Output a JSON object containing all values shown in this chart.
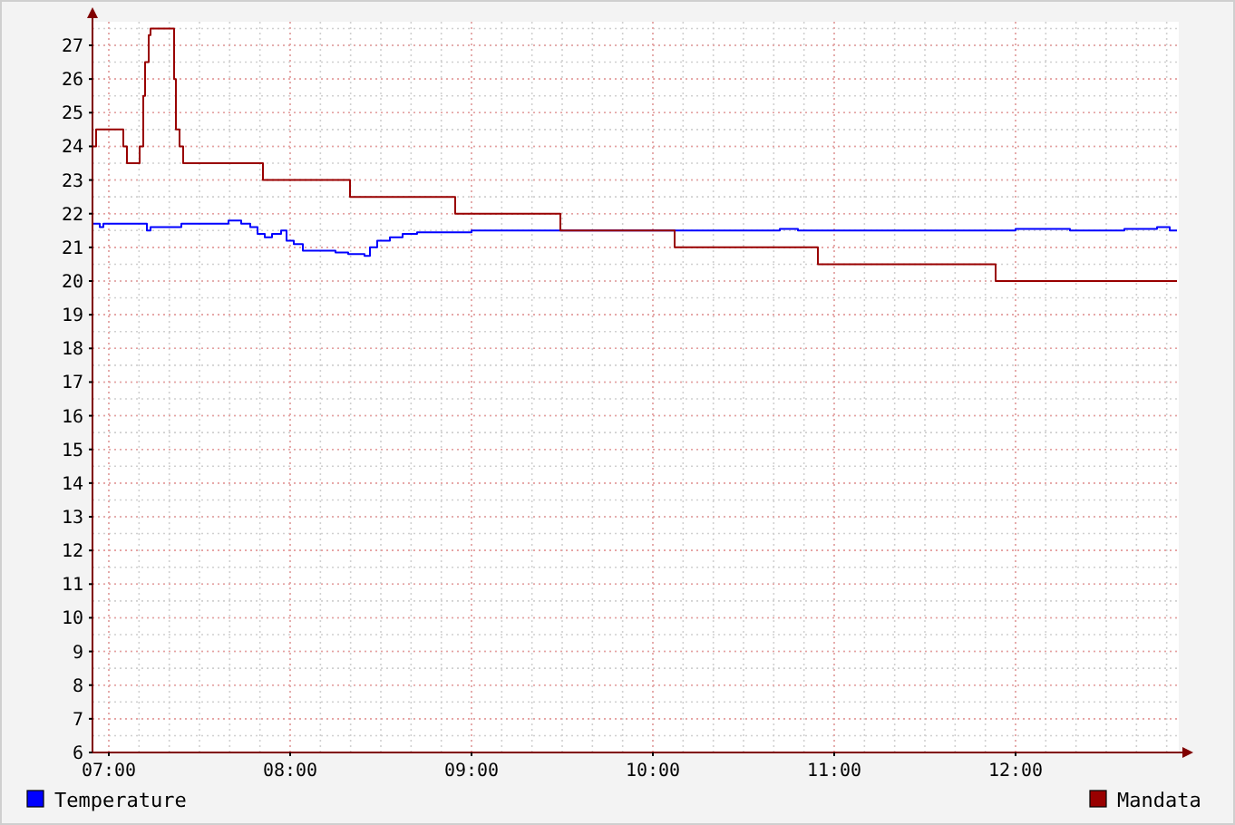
{
  "chart_data": {
    "type": "step",
    "grid": true,
    "legend": "bottom",
    "line_style": "solid",
    "marker": "none",
    "xlim": [
      6.91,
      12.9
    ],
    "xticks": [
      {
        "value": 7,
        "label": "07:00"
      },
      {
        "value": 8,
        "label": "08:00"
      },
      {
        "value": 9,
        "label": "09:00"
      },
      {
        "value": 10,
        "label": "10:00"
      },
      {
        "value": 11,
        "label": "11:00"
      },
      {
        "value": 12,
        "label": "12:00"
      }
    ],
    "ylim": [
      6,
      27.7
    ],
    "yticks": [
      6,
      7,
      8,
      9,
      10,
      11,
      12,
      13,
      14,
      15,
      16,
      17,
      18,
      19,
      20,
      21,
      22,
      23,
      24,
      25,
      26,
      27
    ],
    "series": [
      {
        "name": "Temperature",
        "color": "#0000ff",
        "x": [
          6.91,
          6.95,
          6.97,
          7.1,
          7.2,
          7.21,
          7.23,
          7.4,
          7.5,
          7.6,
          7.66,
          7.7,
          7.73,
          7.78,
          7.82,
          7.86,
          7.9,
          7.95,
          7.98,
          8.02,
          8.07,
          8.2,
          8.25,
          8.32,
          8.41,
          8.44,
          8.48,
          8.55,
          8.62,
          8.7,
          8.9,
          9.0,
          9.5,
          10.5,
          10.7,
          10.8,
          11.5,
          11.9,
          12.0,
          12.3,
          12.6,
          12.78,
          12.85,
          12.89
        ],
        "values": [
          21.7,
          21.6,
          21.7,
          21.7,
          21.7,
          21.5,
          21.6,
          21.7,
          21.7,
          21.7,
          21.8,
          21.8,
          21.7,
          21.6,
          21.4,
          21.3,
          21.4,
          21.5,
          21.2,
          21.1,
          20.9,
          20.9,
          20.85,
          20.8,
          20.75,
          21.0,
          21.2,
          21.3,
          21.4,
          21.45,
          21.45,
          21.5,
          21.5,
          21.5,
          21.55,
          21.5,
          21.5,
          21.5,
          21.55,
          21.5,
          21.55,
          21.6,
          21.5,
          21.5
        ]
      },
      {
        "name": "Mandata",
        "color": "#990000",
        "x": [
          6.91,
          6.93,
          7.08,
          7.1,
          7.17,
          7.19,
          7.2,
          7.22,
          7.23,
          7.36,
          7.37,
          7.39,
          7.41,
          7.85,
          8.33,
          8.91,
          9.49,
          10.12,
          10.91,
          11.89,
          12.89
        ],
        "values": [
          24.0,
          24.5,
          24.0,
          23.5,
          24.0,
          25.5,
          26.5,
          27.3,
          27.5,
          26.0,
          24.5,
          24.0,
          23.5,
          23.0,
          22.5,
          22.0,
          21.5,
          21.0,
          20.5,
          20.0,
          20.0
        ]
      }
    ]
  }
}
